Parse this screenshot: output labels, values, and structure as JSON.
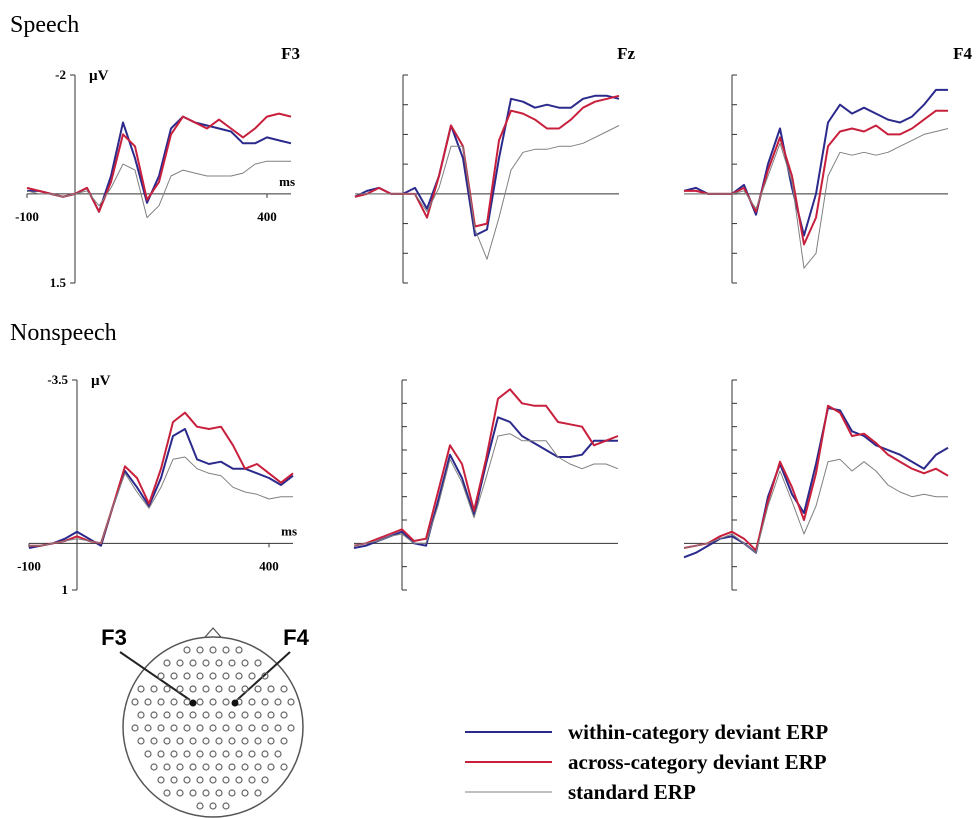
{
  "sections": [
    "Speech",
    "Nonspeech"
  ],
  "head_map": {
    "labels": [
      "F3",
      "F4"
    ]
  },
  "chart_data": [
    {
      "type": "line",
      "title": "F3",
      "x_label": "ms",
      "y_label": "µV",
      "xlim": [
        -100,
        450
      ],
      "xticks": [
        -100,
        400
      ],
      "ylim": [
        -2,
        1.5
      ],
      "yticks": [
        -2,
        1.5
      ],
      "y_reversed": true,
      "tick_labels": true,
      "x": [
        -100,
        -75,
        -50,
        -25,
        0,
        25,
        50,
        75,
        100,
        125,
        150,
        175,
        200,
        225,
        250,
        275,
        300,
        325,
        350,
        375,
        400,
        425,
        450
      ],
      "series": [
        {
          "name": "within-category deviant ERP",
          "color": "#2b2a8c",
          "values": [
            -0.05,
            -0.05,
            0,
            0.05,
            0,
            -0.1,
            0.3,
            -0.3,
            -1.2,
            -0.6,
            0.15,
            -0.3,
            -1.1,
            -1.3,
            -1.2,
            -1.15,
            -1.1,
            -1.05,
            -0.85,
            -0.85,
            -0.95,
            -0.9,
            -0.85
          ]
        },
        {
          "name": "across-category deviant ERP",
          "color": "#c8203c",
          "values": [
            -0.1,
            -0.05,
            0,
            0.05,
            0,
            -0.1,
            0.3,
            -0.2,
            -1.0,
            -0.8,
            0.1,
            -0.2,
            -1.0,
            -1.3,
            -1.2,
            -1.1,
            -1.25,
            -1.1,
            -0.95,
            -1.1,
            -1.3,
            -1.35,
            -1.3
          ]
        },
        {
          "name": "standard ERP",
          "color": "#808080",
          "values": [
            -0.05,
            0,
            0,
            0.05,
            0,
            -0.05,
            0.2,
            -0.1,
            -0.5,
            -0.4,
            0.4,
            0.2,
            -0.3,
            -0.4,
            -0.35,
            -0.3,
            -0.3,
            -0.3,
            -0.35,
            -0.5,
            -0.55,
            -0.55,
            -0.55
          ]
        }
      ]
    },
    {
      "type": "line",
      "title": "Fz",
      "xlim": [
        -100,
        450
      ],
      "ylim": [
        -2,
        1.5
      ],
      "yticks": [
        -2,
        -1.5,
        -1,
        -0.5,
        0,
        0.5,
        1,
        1.5
      ],
      "y_reversed": true,
      "tick_labels": false,
      "x": [
        -100,
        -75,
        -50,
        -25,
        0,
        25,
        50,
        75,
        100,
        125,
        150,
        175,
        200,
        225,
        250,
        275,
        300,
        325,
        350,
        375,
        400,
        425,
        450
      ],
      "series": [
        {
          "name": "within-category deviant ERP",
          "color": "#2b2a8c",
          "values": [
            0.05,
            -0.05,
            -0.1,
            0,
            0,
            -0.1,
            0.25,
            -0.3,
            -1.15,
            -0.6,
            0.7,
            0.6,
            -0.6,
            -1.6,
            -1.55,
            -1.45,
            -1.5,
            -1.45,
            -1.45,
            -1.6,
            -1.65,
            -1.65,
            -1.6
          ]
        },
        {
          "name": "across-category deviant ERP",
          "color": "#c8203c",
          "values": [
            0.05,
            0,
            -0.1,
            0,
            0,
            0,
            0.4,
            -0.3,
            -1.15,
            -0.8,
            0.55,
            0.5,
            -0.9,
            -1.4,
            -1.35,
            -1.25,
            -1.1,
            -1.1,
            -1.25,
            -1.45,
            -1.55,
            -1.6,
            -1.65
          ]
        },
        {
          "name": "standard ERP",
          "color": "#808080",
          "values": [
            0,
            0,
            0,
            0,
            0,
            0,
            0.3,
            -0.1,
            -0.8,
            -0.8,
            0.6,
            1.1,
            0.4,
            -0.4,
            -0.7,
            -0.75,
            -0.75,
            -0.8,
            -0.8,
            -0.85,
            -0.95,
            -1.05,
            -1.15
          ]
        }
      ]
    },
    {
      "type": "line",
      "title": "F4",
      "xlim": [
        -100,
        450
      ],
      "ylim": [
        -2,
        1.5
      ],
      "yticks": [
        -2,
        -1.5,
        -1,
        -0.5,
        0,
        0.5,
        1,
        1.5
      ],
      "y_reversed": true,
      "tick_labels": false,
      "x": [
        -100,
        -75,
        -50,
        -25,
        0,
        25,
        50,
        75,
        100,
        125,
        150,
        175,
        200,
        225,
        250,
        275,
        300,
        325,
        350,
        375,
        400,
        425,
        450
      ],
      "series": [
        {
          "name": "within-category deviant ERP",
          "color": "#2b2a8c",
          "values": [
            -0.05,
            -0.1,
            0,
            0,
            0,
            -0.15,
            0.35,
            -0.5,
            -1.1,
            -0.1,
            0.7,
            0,
            -1.2,
            -1.5,
            -1.35,
            -1.45,
            -1.35,
            -1.25,
            -1.2,
            -1.3,
            -1.5,
            -1.75,
            -1.75
          ]
        },
        {
          "name": "across-category deviant ERP",
          "color": "#c8203c",
          "values": [
            -0.05,
            -0.05,
            0,
            0,
            0,
            -0.1,
            0.3,
            -0.4,
            -0.95,
            -0.3,
            0.85,
            0.4,
            -0.8,
            -1.05,
            -1.1,
            -1.05,
            -1.15,
            -1.0,
            -1.0,
            -1.1,
            -1.25,
            -1.4,
            -1.4
          ]
        },
        {
          "name": "standard ERP",
          "color": "#808080",
          "values": [
            0,
            0,
            0,
            0,
            0,
            -0.05,
            0.25,
            -0.3,
            -0.85,
            -0.2,
            1.25,
            1.0,
            -0.3,
            -0.7,
            -0.65,
            -0.7,
            -0.65,
            -0.7,
            -0.8,
            -0.9,
            -1.0,
            -1.05,
            -1.1
          ]
        }
      ]
    },
    {
      "type": "line",
      "x_label": "ms",
      "y_label": "µV",
      "xlim": [
        -100,
        450
      ],
      "xticks": [
        -100,
        400
      ],
      "ylim": [
        -3.5,
        1
      ],
      "yticks": [
        -3.5,
        1
      ],
      "y_reversed": true,
      "tick_labels": true,
      "x": [
        -100,
        -75,
        -50,
        -25,
        0,
        25,
        50,
        75,
        100,
        125,
        150,
        175,
        200,
        225,
        250,
        275,
        300,
        325,
        350,
        375,
        400,
        425,
        450
      ],
      "series": [
        {
          "name": "within-category deviant ERP",
          "color": "#2b2a8c",
          "values": [
            0.1,
            0.05,
            0,
            -0.1,
            -0.25,
            -0.1,
            0.05,
            -0.8,
            -1.55,
            -1.2,
            -0.8,
            -1.4,
            -2.3,
            -2.45,
            -1.8,
            -1.7,
            -1.75,
            -1.6,
            -1.6,
            -1.5,
            -1.4,
            -1.25,
            -1.45
          ]
        },
        {
          "name": "across-category deviant ERP",
          "color": "#c8203c",
          "values": [
            0.05,
            0.05,
            0,
            -0.05,
            -0.15,
            -0.05,
            0,
            -0.8,
            -1.65,
            -1.4,
            -0.85,
            -1.6,
            -2.6,
            -2.8,
            -2.5,
            -2.45,
            -2.5,
            -2.1,
            -1.6,
            -1.7,
            -1.5,
            -1.3,
            -1.5
          ]
        },
        {
          "name": "standard ERP",
          "color": "#808080",
          "values": [
            0.05,
            0.05,
            0,
            -0.05,
            -0.1,
            -0.05,
            0,
            -0.8,
            -1.5,
            -1.1,
            -0.75,
            -1.2,
            -1.8,
            -1.85,
            -1.6,
            -1.5,
            -1.45,
            -1.2,
            -1.1,
            -1.05,
            -0.95,
            -1.0,
            -1.0
          ]
        }
      ]
    },
    {
      "type": "line",
      "xlim": [
        -100,
        450
      ],
      "ylim": [
        -3.5,
        1
      ],
      "yticks": [
        -3.5,
        -3,
        -2.5,
        -2,
        -1.5,
        -1,
        -0.5,
        0,
        0.5,
        1
      ],
      "y_reversed": true,
      "tick_labels": false,
      "x": [
        -100,
        -75,
        -50,
        -25,
        0,
        25,
        50,
        75,
        100,
        125,
        150,
        175,
        200,
        225,
        250,
        275,
        300,
        325,
        350,
        375,
        400,
        425,
        450
      ],
      "series": [
        {
          "name": "within-category deviant ERP",
          "color": "#2b2a8c",
          "values": [
            0.1,
            0.05,
            -0.05,
            -0.15,
            -0.25,
            0,
            0.05,
            -0.9,
            -1.9,
            -1.4,
            -0.6,
            -1.7,
            -2.7,
            -2.6,
            -2.3,
            -2.15,
            -2.0,
            -1.85,
            -1.85,
            -1.9,
            -2.2,
            -2.2,
            -2.2
          ]
        },
        {
          "name": "across-category deviant ERP",
          "color": "#c8203c",
          "values": [
            0.05,
            0,
            -0.1,
            -0.2,
            -0.3,
            -0.05,
            -0.1,
            -1.1,
            -2.1,
            -1.7,
            -0.7,
            -1.8,
            -3.1,
            -3.3,
            -3.0,
            -2.95,
            -2.95,
            -2.6,
            -2.55,
            -2.5,
            -2.1,
            -2.2,
            -2.3
          ]
        },
        {
          "name": "standard ERP",
          "color": "#808080",
          "values": [
            0.05,
            0,
            -0.05,
            -0.15,
            -0.2,
            0,
            0,
            -0.8,
            -1.8,
            -1.3,
            -0.55,
            -1.4,
            -2.3,
            -2.35,
            -2.2,
            -2.2,
            -2.2,
            -1.85,
            -1.7,
            -1.6,
            -1.7,
            -1.7,
            -1.6
          ]
        }
      ]
    },
    {
      "type": "line",
      "xlim": [
        -100,
        450
      ],
      "ylim": [
        -3.5,
        1
      ],
      "yticks": [
        -3.5,
        -3,
        -2.5,
        -2,
        -1.5,
        -1,
        -0.5,
        0,
        0.5,
        1
      ],
      "y_reversed": true,
      "tick_labels": false,
      "x": [
        -100,
        -75,
        -50,
        -25,
        0,
        25,
        50,
        75,
        100,
        125,
        150,
        175,
        200,
        225,
        250,
        275,
        300,
        325,
        350,
        375,
        400,
        425,
        450
      ],
      "series": [
        {
          "name": "within-category deviant ERP",
          "color": "#2b2a8c",
          "values": [
            0.3,
            0.2,
            0.05,
            -0.1,
            -0.15,
            0,
            0.2,
            -1.0,
            -1.7,
            -1.05,
            -0.65,
            -1.7,
            -2.9,
            -2.85,
            -2.4,
            -2.3,
            -2.1,
            -2.0,
            -1.9,
            -1.75,
            -1.6,
            -1.9,
            -2.05
          ]
        },
        {
          "name": "across-category deviant ERP",
          "color": "#c8203c",
          "values": [
            0.1,
            0.05,
            0,
            -0.15,
            -0.25,
            -0.1,
            0.15,
            -0.9,
            -1.75,
            -1.2,
            -0.5,
            -1.5,
            -2.95,
            -2.8,
            -2.3,
            -2.35,
            -2.15,
            -1.9,
            -1.75,
            -1.6,
            -1.5,
            -1.6,
            -1.45
          ]
        },
        {
          "name": "standard ERP",
          "color": "#808080",
          "values": [
            0.1,
            0.05,
            0,
            -0.1,
            -0.2,
            0,
            0.2,
            -0.8,
            -1.55,
            -0.9,
            -0.2,
            -0.8,
            -1.75,
            -1.8,
            -1.55,
            -1.75,
            -1.55,
            -1.25,
            -1.1,
            -1.0,
            -1.05,
            -1.0,
            -1.0
          ]
        }
      ]
    }
  ]
}
